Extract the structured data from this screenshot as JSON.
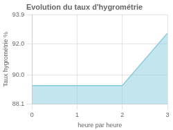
{
  "chart_data": {
    "type": "area",
    "title": "Evolution du taux d'hygrométrie",
    "xlabel": "heure par heure",
    "ylabel": "Taux hygrométrie %",
    "x": [
      0,
      2,
      3
    ],
    "values": [
      89.3,
      89.3,
      92.7
    ],
    "color": "#88ccdd",
    "xlim": [
      0,
      3
    ],
    "ylim": [
      88.1,
      93.9
    ],
    "xticks": [
      0,
      1,
      2,
      3
    ],
    "yticks": [
      88.1,
      {
        "value": 90,
        "label": "90.0"
      },
      {
        "value": 92,
        "label": "92.0"
      },
      93.9
    ],
    "grid": true
  }
}
